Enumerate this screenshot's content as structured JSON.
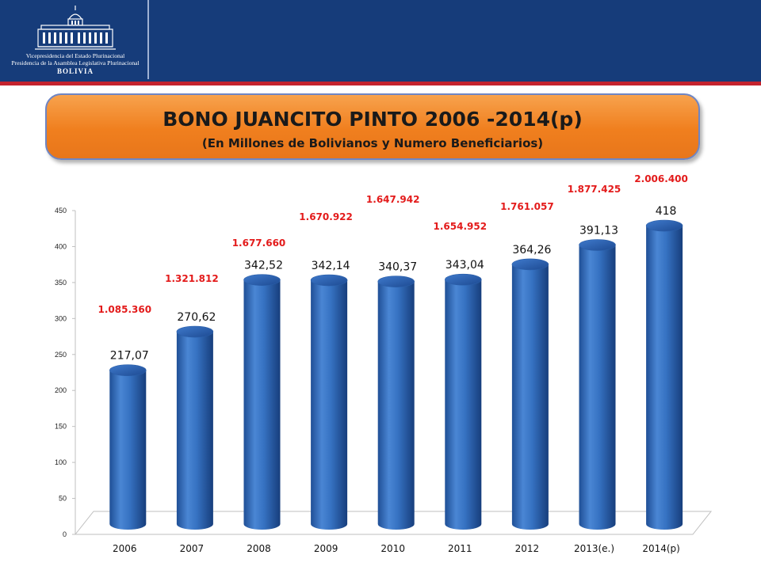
{
  "header": {
    "logo_line1": "Vicepresidencia del Estado Plurinacional",
    "logo_line2": "Presidencia de la Asamblea Legislativa Plurinacional",
    "logo_country": "BOLIVIA"
  },
  "title": {
    "main": "BONO JUANCITO PINTO 2006 -2014(p)",
    "sub": "(En Millones de Bolivianos y Numero Beneficiarios)"
  },
  "colors": {
    "header_bg": "#163c7a",
    "header_stripe": "#c4232e",
    "title_box": "#f07f1e",
    "bar": "#2f6fc0",
    "beneficiary_label": "#e31b1b"
  },
  "chart_data": {
    "type": "bar",
    "style": "3d-cylinder",
    "categories": [
      "2006",
      "2007",
      "2008",
      "2009",
      "2010",
      "2011",
      "2012",
      "2013(e.)",
      "2014(p)"
    ],
    "values": [
      217.07,
      270.62,
      342.52,
      342.14,
      340.37,
      343.04,
      364.26,
      391.13,
      418
    ],
    "value_labels": [
      "217,07",
      "270,62",
      "342,52",
      "342,14",
      "340,37",
      "343,04",
      "364,26",
      "391,13",
      "418"
    ],
    "beneficiaries": [
      "1.085.360",
      "1.321.812",
      "1.677.660",
      "1.670.922",
      "1.647.942",
      "1.654.952",
      "1.761.057",
      "1.877.425",
      "2.006.400"
    ],
    "ylim": [
      0,
      450
    ],
    "yticks": [
      0,
      50,
      100,
      150,
      200,
      250,
      300,
      350,
      400,
      450
    ],
    "grid": false,
    "legend": "none"
  }
}
